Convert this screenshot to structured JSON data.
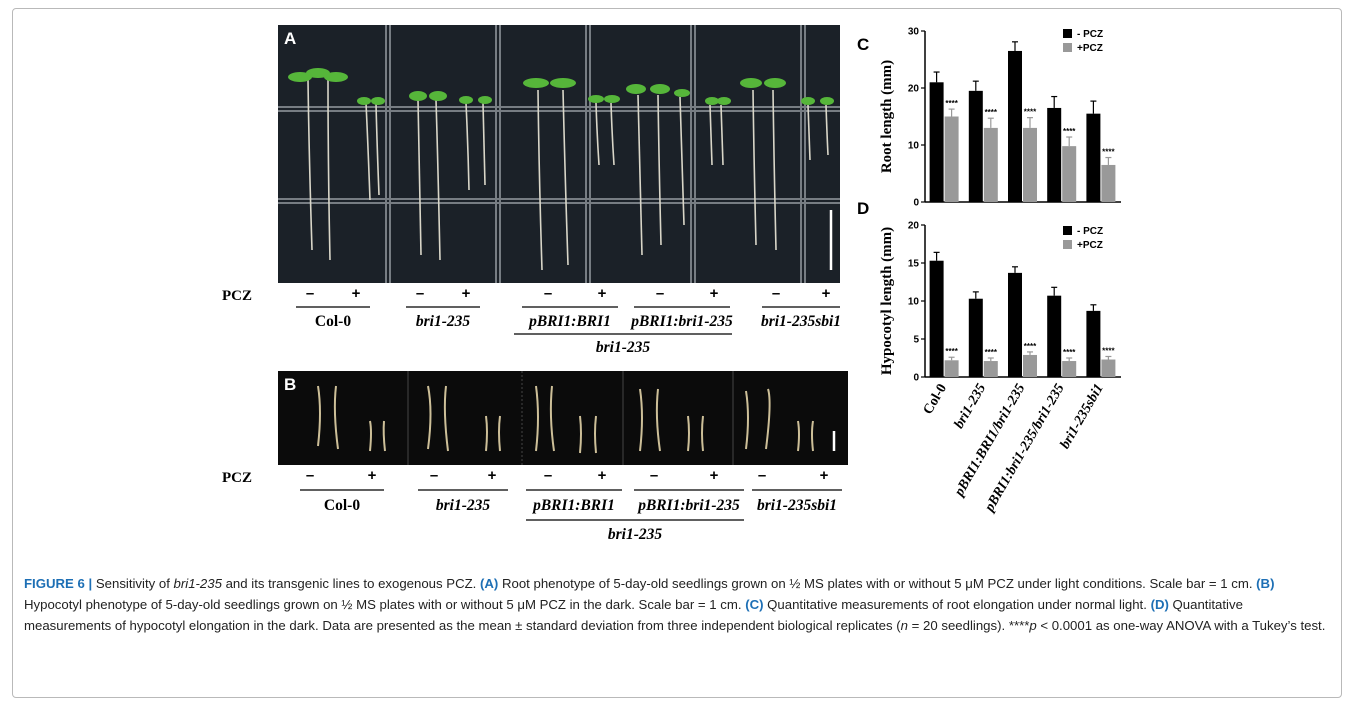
{
  "panels": {
    "a_label": "A",
    "b_label": "B",
    "c_label": "C",
    "d_label": "D"
  },
  "row_labels": {
    "pcz_a": "PCZ",
    "pcz_b": "PCZ"
  },
  "treatment_marks": {
    "minus": "–",
    "plus": "+"
  },
  "genotypes_a": [
    "Col-0",
    "bri1-235",
    "pBRI1:BRI1",
    "pBRI1:bri1-235",
    "bri1-235sbi1"
  ],
  "genotypes_b": [
    "Col-0",
    "bri1-235",
    "pBRI1:BRI1",
    "pBRI1:bri1-235",
    "bri1-235sbi1"
  ],
  "background_label_a": "bri1-235",
  "background_label_b": "bri1-235",
  "chart_data": [
    {
      "type": "bar",
      "panel": "C",
      "ylabel": "Root length (mm)",
      "ylim": [
        0,
        30
      ],
      "yticks": [
        0,
        10,
        20,
        30
      ],
      "categories": [
        "Col-0",
        "bri1-235",
        "pBRI1:BRI1/bri1-235",
        "pBRI1:bri1-235/bri1-235",
        "bri1-235sbi1"
      ],
      "series": [
        {
          "name": "- PCZ",
          "color": "#000000",
          "values": [
            21.0,
            19.5,
            26.5,
            16.5,
            15.5
          ],
          "errors": [
            1.8,
            1.7,
            1.6,
            2.0,
            2.2
          ]
        },
        {
          "name": "+PCZ",
          "color": "#999999",
          "values": [
            15.0,
            13.0,
            13.0,
            9.8,
            6.5
          ],
          "errors": [
            1.3,
            1.7,
            1.8,
            1.6,
            1.3
          ]
        }
      ],
      "annotations": [
        "****",
        "****",
        "****",
        "****",
        "****"
      ],
      "legend": "top-right"
    },
    {
      "type": "bar",
      "panel": "D",
      "ylabel": "Hypocotyl length (mm)",
      "ylim": [
        0,
        20
      ],
      "yticks": [
        0,
        5,
        10,
        15,
        20
      ],
      "categories": [
        "Col-0",
        "bri1-235",
        "pBRI1:BRI1/bri1-235",
        "pBRI1:bri1-235/bri1-235",
        "bri1-235sbi1"
      ],
      "series": [
        {
          "name": "- PCZ",
          "color": "#000000",
          "values": [
            15.3,
            10.3,
            13.7,
            10.7,
            8.7
          ],
          "errors": [
            1.1,
            0.9,
            0.8,
            1.1,
            0.8
          ]
        },
        {
          "name": "+PCZ",
          "color": "#999999",
          "values": [
            2.2,
            2.1,
            2.9,
            2.1,
            2.3
          ],
          "errors": [
            0.4,
            0.4,
            0.4,
            0.4,
            0.4
          ]
        }
      ],
      "annotations": [
        "****",
        "****",
        "****",
        "****",
        "****"
      ],
      "legend": "top-right"
    }
  ],
  "caption": {
    "figure_label": "FIGURE 6 |",
    "title_a": " Sensitivity of ",
    "title_ital": "bri1-235",
    "title_b": " and its transgenic lines to exogenous PCZ. ",
    "ref_a": "(A)",
    "text_a": " Root phenotype of 5-day-old seedlings grown on ½ MS plates with or without 5 μM PCZ under light conditions. Scale bar = 1 cm. ",
    "ref_b": "(B)",
    "text_b": " Hypocotyl phenotype of 5-day-old seedlings grown on ½ MS plates with or without 5 μM PCZ in the dark. Scale bar = 1 cm. ",
    "ref_c": "(C)",
    "text_c": " Quantitative measurements of root elongation under normal light. ",
    "ref_d": "(D)",
    "text_d": " Quantitative measurements of hypocotyl elongation in the dark. Data are presented as the mean ± standard deviation from three independent biological replicates (",
    "n_ital": "n",
    "text_e": " = 20 seedlings). ****",
    "p_ital": "p",
    "text_f": " < 0.0001 as one-way ANOVA with a Tukey’s test."
  }
}
